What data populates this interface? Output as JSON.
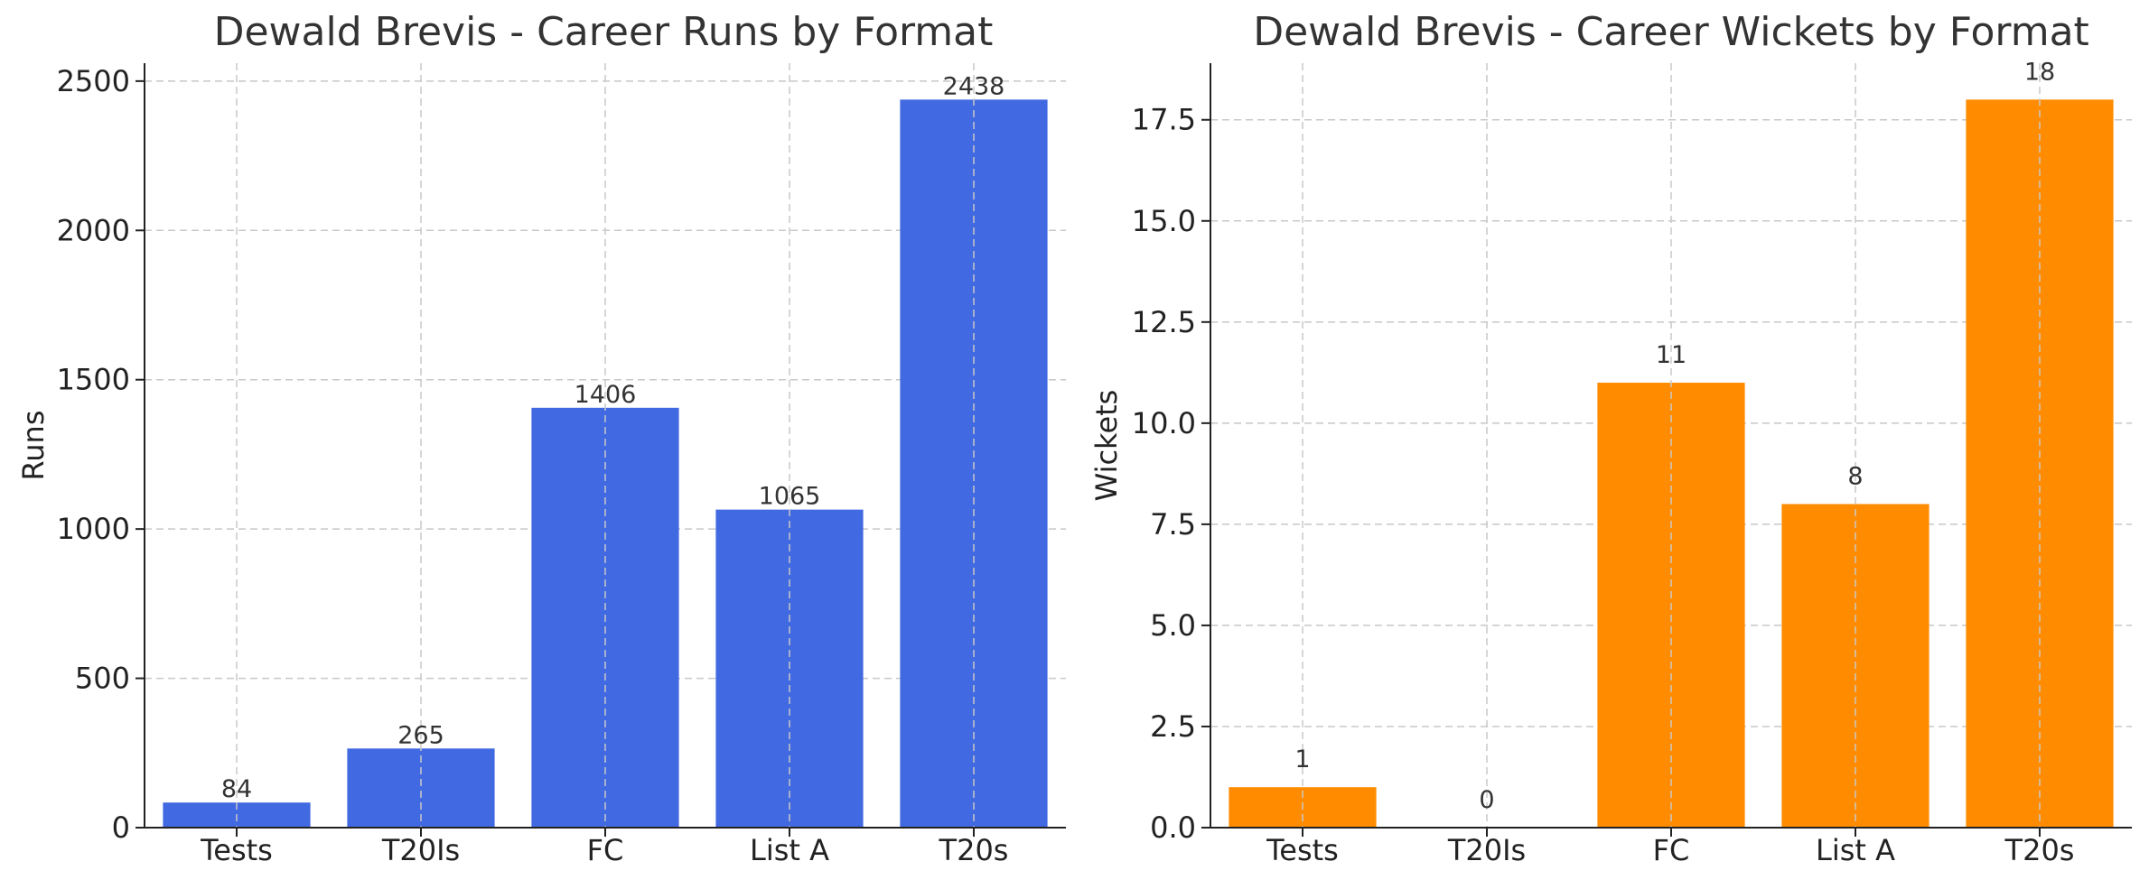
{
  "chart_data": [
    {
      "type": "bar",
      "title": "Dewald Brevis - Career Runs by Format",
      "xlabel": "",
      "ylabel": "Runs",
      "categories": [
        "Tests",
        "T20Is",
        "FC",
        "List A",
        "T20s"
      ],
      "values": [
        84,
        265,
        1406,
        1065,
        2438
      ],
      "data_labels": [
        "84",
        "265",
        "1406",
        "1065",
        "2438"
      ],
      "ylim": [
        0,
        2560
      ],
      "yticks": [
        0,
        500,
        1000,
        1500,
        2000,
        2500
      ],
      "ytick_labels": [
        "0",
        "500",
        "1000",
        "1500",
        "2000",
        "2500"
      ],
      "color": "#4169E1",
      "grid": true
    },
    {
      "type": "bar",
      "title": "Dewald Brevis - Career Wickets by Format",
      "xlabel": "",
      "ylabel": "Wickets",
      "categories": [
        "Tests",
        "T20Is",
        "FC",
        "List A",
        "T20s"
      ],
      "values": [
        1,
        0,
        11,
        8,
        18
      ],
      "data_labels": [
        "1",
        "0",
        "11",
        "8",
        "18"
      ],
      "ylim": [
        0,
        18.9
      ],
      "yticks": [
        0,
        2.5,
        5,
        7.5,
        10,
        12.5,
        15,
        17.5
      ],
      "ytick_labels": [
        "0.0",
        "2.5",
        "5.0",
        "7.5",
        "10.0",
        "12.5",
        "15.0",
        "17.5"
      ],
      "color": "#FF8C00",
      "grid": true
    }
  ]
}
